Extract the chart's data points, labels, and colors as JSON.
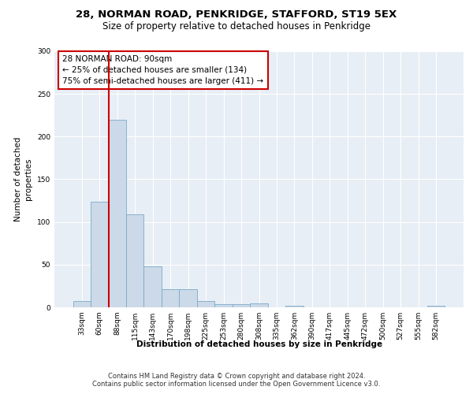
{
  "title1": "28, NORMAN ROAD, PENKRIDGE, STAFFORD, ST19 5EX",
  "title2": "Size of property relative to detached houses in Penkridge",
  "xlabel": "Distribution of detached houses by size in Penkridge",
  "ylabel": "Number of detached\nproperties",
  "bar_labels": [
    "33sqm",
    "60sqm",
    "88sqm",
    "115sqm",
    "143sqm",
    "170sqm",
    "198sqm",
    "225sqm",
    "253sqm",
    "280sqm",
    "308sqm",
    "335sqm",
    "362sqm",
    "390sqm",
    "417sqm",
    "445sqm",
    "472sqm",
    "500sqm",
    "527sqm",
    "555sqm",
    "582sqm"
  ],
  "bar_values": [
    7,
    124,
    220,
    109,
    48,
    21,
    21,
    7,
    4,
    4,
    5,
    0,
    2,
    0,
    0,
    0,
    0,
    0,
    0,
    0,
    2
  ],
  "bar_color": "#ccd9e8",
  "bar_edgecolor": "#7aaac8",
  "vline_color": "#cc0000",
  "vline_xindex": 2,
  "annotation_text": "28 NORMAN ROAD: 90sqm\n← 25% of detached houses are smaller (134)\n75% of semi-detached houses are larger (411) →",
  "annotation_box_edgecolor": "#cc0000",
  "ylim": [
    0,
    300
  ],
  "yticks": [
    0,
    50,
    100,
    150,
    200,
    250,
    300
  ],
  "background_color": "#e8eef5",
  "footer_line1": "Contains HM Land Registry data © Crown copyright and database right 2024.",
  "footer_line2": "Contains public sector information licensed under the Open Government Licence v3.0."
}
